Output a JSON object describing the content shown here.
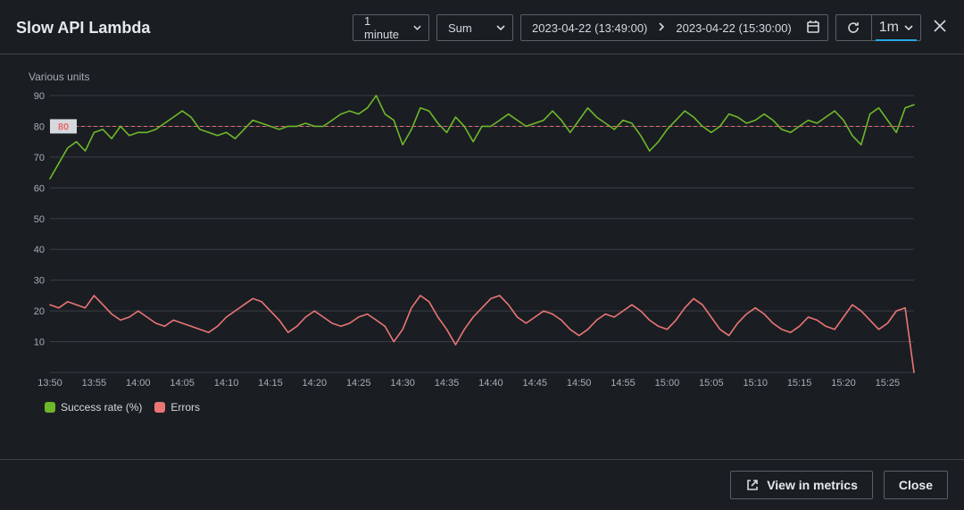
{
  "title": "Slow API Lambda",
  "controls": {
    "period": "1 minute",
    "statistic": "Sum",
    "date_from": "2023-04-22 (13:49:00)",
    "date_to": "2023-04-22 (15:30:00)",
    "refresh_interval": "1m"
  },
  "chart": {
    "type": "line",
    "y_axis_label": "Various units",
    "ylim": [
      0,
      90
    ],
    "ytick_step": 10,
    "yticks": [
      10,
      20,
      30,
      40,
      50,
      60,
      70,
      80,
      90
    ],
    "background_color": "#1a1e23",
    "grid_color": "#3a3e44",
    "axis_text_color": "#a7adb3",
    "axis_fontsize": 11,
    "line_width": 1.6,
    "threshold": {
      "value": 80,
      "label": "80",
      "color": "#e86a6a",
      "label_bg": "#d5d9de",
      "dash": "4,3"
    },
    "x_start_minute": 830,
    "x_end_minute": 928,
    "xticks": [
      {
        "m": 830,
        "label": "13:50"
      },
      {
        "m": 835,
        "label": "13:55"
      },
      {
        "m": 840,
        "label": "14:00"
      },
      {
        "m": 845,
        "label": "14:05"
      },
      {
        "m": 850,
        "label": "14:10"
      },
      {
        "m": 855,
        "label": "14:15"
      },
      {
        "m": 860,
        "label": "14:20"
      },
      {
        "m": 865,
        "label": "14:25"
      },
      {
        "m": 870,
        "label": "14:30"
      },
      {
        "m": 875,
        "label": "14:35"
      },
      {
        "m": 880,
        "label": "14:40"
      },
      {
        "m": 885,
        "label": "14:45"
      },
      {
        "m": 890,
        "label": "14:50"
      },
      {
        "m": 895,
        "label": "14:55"
      },
      {
        "m": 900,
        "label": "15:00"
      },
      {
        "m": 905,
        "label": "15:05"
      },
      {
        "m": 910,
        "label": "15:10"
      },
      {
        "m": 915,
        "label": "15:15"
      },
      {
        "m": 920,
        "label": "15:20"
      },
      {
        "m": 925,
        "label": "15:25"
      }
    ],
    "series": [
      {
        "name": "Success rate (%)",
        "color": "#6fb72a",
        "values": [
          63,
          68,
          73,
          75,
          72,
          78,
          79,
          76,
          80,
          77,
          78,
          78,
          79,
          81,
          83,
          85,
          83,
          79,
          78,
          77,
          78,
          76,
          79,
          82,
          81,
          80,
          79,
          80,
          80,
          81,
          80,
          80,
          82,
          84,
          85,
          84,
          86,
          90,
          84,
          82,
          74,
          79,
          86,
          85,
          81,
          78,
          83,
          80,
          75,
          80,
          80,
          82,
          84,
          82,
          80,
          81,
          82,
          85,
          82,
          78,
          82,
          86,
          83,
          81,
          79,
          82,
          81,
          77,
          72,
          75,
          79,
          82,
          85,
          83,
          80,
          78,
          80,
          84,
          83,
          81,
          82,
          84,
          82,
          79,
          78,
          80,
          82,
          81,
          83,
          85,
          82,
          77,
          74,
          84,
          86,
          82,
          78,
          86,
          87
        ]
      },
      {
        "name": "Errors",
        "color": "#ea7575",
        "values": [
          22,
          21,
          23,
          22,
          21,
          25,
          22,
          19,
          17,
          18,
          20,
          18,
          16,
          15,
          17,
          16,
          15,
          14,
          13,
          15,
          18,
          20,
          22,
          24,
          23,
          20,
          17,
          13,
          15,
          18,
          20,
          18,
          16,
          15,
          16,
          18,
          19,
          17,
          15,
          10,
          14,
          21,
          25,
          23,
          18,
          14,
          9,
          14,
          18,
          21,
          24,
          25,
          22,
          18,
          16,
          18,
          20,
          19,
          17,
          14,
          12,
          14,
          17,
          19,
          18,
          20,
          22,
          20,
          17,
          15,
          14,
          17,
          21,
          24,
          22,
          18,
          14,
          12,
          16,
          19,
          21,
          19,
          16,
          14,
          13,
          15,
          18,
          17,
          15,
          14,
          18,
          22,
          20,
          17,
          14,
          16,
          20,
          21,
          0
        ]
      }
    ]
  },
  "legend": [
    {
      "label": "Success rate (%)",
      "color": "#6fb72a"
    },
    {
      "label": "Errors",
      "color": "#ea7575"
    }
  ],
  "footer": {
    "view_in_metrics": "View in metrics",
    "close": "Close"
  }
}
